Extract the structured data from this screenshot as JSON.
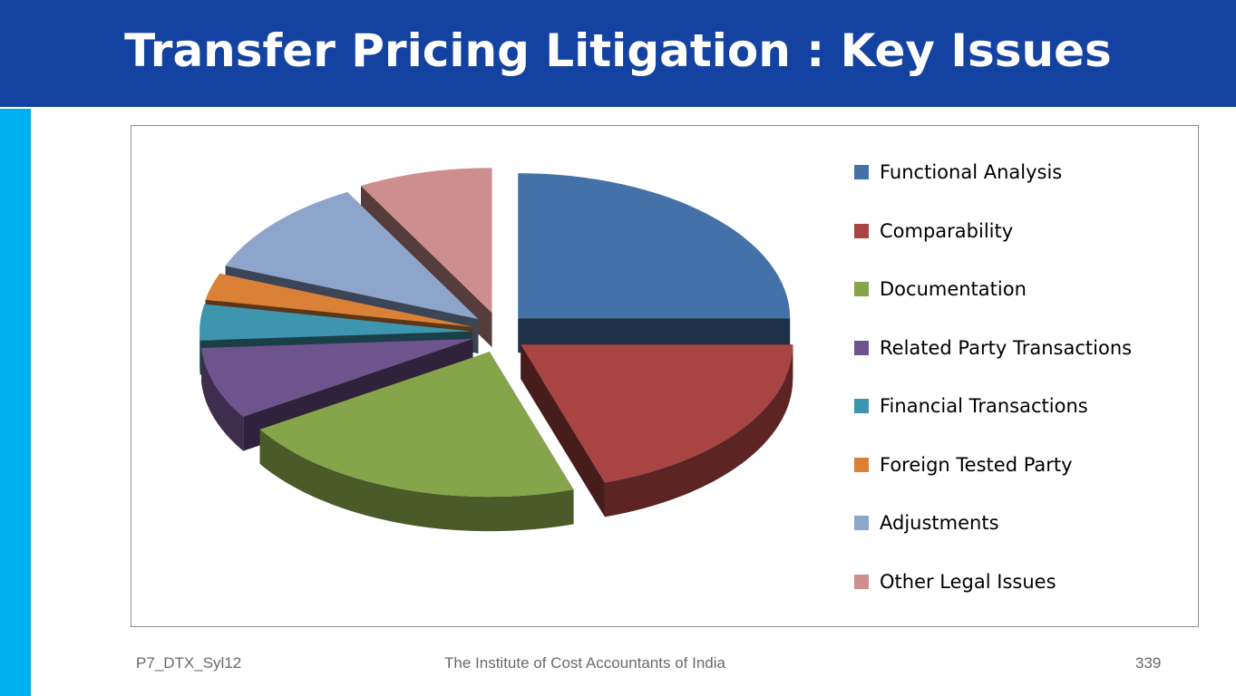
{
  "slide": {
    "title": "Transfer Pricing Litigation : Key Issues",
    "title_bar_color": "#1442a0",
    "side_bar_color": "#00b0f0"
  },
  "chart_data": {
    "type": "pie",
    "style": "3d-exploded",
    "legend_position": "right",
    "series": [
      {
        "label": "Functional Analysis",
        "value": 25,
        "color": "#4472a8"
      },
      {
        "label": "Comparability",
        "value": 20,
        "color": "#a84442"
      },
      {
        "label": "Documentation",
        "value": 21,
        "color": "#86a44a"
      },
      {
        "label": "Related Party Transactions",
        "value": 8,
        "color": "#6e548d"
      },
      {
        "label": "Financial Transactions",
        "value": 4,
        "color": "#3d96ae"
      },
      {
        "label": "Foreign Tested Party",
        "value": 3,
        "color": "#da8137"
      },
      {
        "label": "Adjustments",
        "value": 11,
        "color": "#8ea5cb"
      },
      {
        "label": "Other Legal Issues",
        "value": 8,
        "color": "#cd8f8e"
      }
    ]
  },
  "footer": {
    "left": "P7_DTX_Syl12",
    "center": "The Institute of Cost Accountants of India",
    "page_number": "339"
  }
}
